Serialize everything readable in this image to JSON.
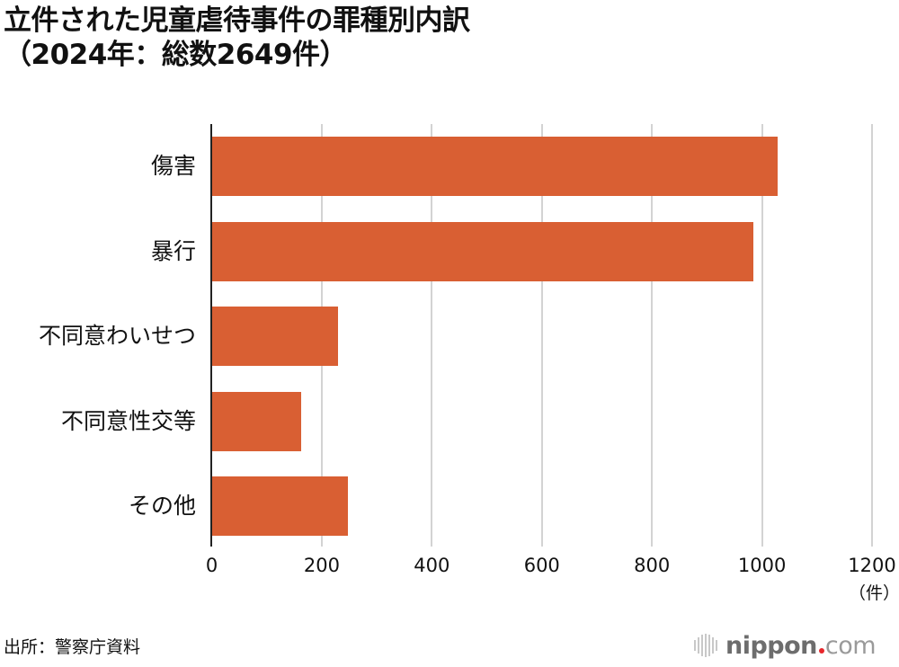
{
  "title": {
    "line1": "立件された児童虐待事件の罪種別内訳",
    "line2": "（2024年：総数2649件）"
  },
  "chart_data": {
    "type": "bar",
    "orientation": "horizontal",
    "title": "立件された児童虐待事件の罪種別内訳（2024年：総数2649件）",
    "categories": [
      "傷害",
      "暴行",
      "不同意わいせつ",
      "不同意性交等",
      "その他"
    ],
    "values": [
      1028,
      983,
      229,
      162,
      247
    ],
    "total": 2649,
    "xlabel": "（件）",
    "ylabel": "",
    "xlim": [
      0,
      1200
    ],
    "xticks": [
      "0",
      "200",
      "400",
      "600",
      "800",
      "1000",
      "1200"
    ],
    "grid": "vertical",
    "bar_color": "#d95f33",
    "legend": null
  },
  "axis": {
    "unit_label": "（件）"
  },
  "footer": {
    "source": "出所：警察庁資料",
    "logo_main": "nippon",
    "logo_suffix": "com"
  },
  "colors": {
    "bar": "#d95f33",
    "grid": "#d3d3d3",
    "logo_dot": "#e8262b"
  }
}
